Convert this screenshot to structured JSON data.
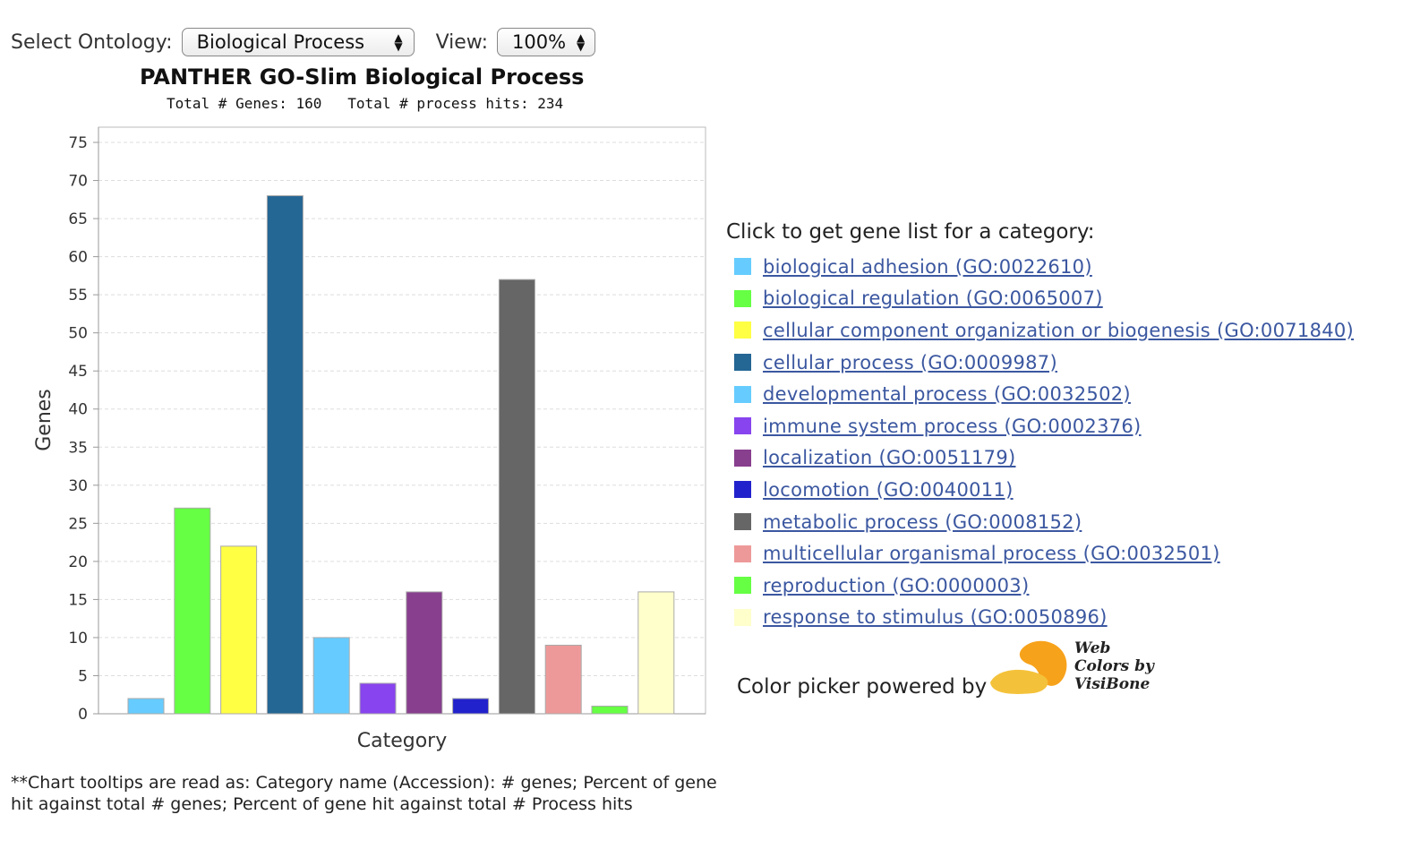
{
  "controls": {
    "ontology_label": "Select Ontology:",
    "ontology_value": "Biological Process",
    "view_label": "View:",
    "view_value": "100%"
  },
  "chart_data": {
    "type": "bar",
    "title": "PANTHER GO-Slim Biological Process",
    "subtitle": "Total # Genes: 160   Total # process hits: 234",
    "xlabel": "Category",
    "ylabel": "Genes",
    "ylim": [
      0,
      77
    ],
    "yticks": [
      0,
      5,
      10,
      15,
      20,
      25,
      30,
      35,
      40,
      45,
      50,
      55,
      60,
      65,
      70,
      75
    ],
    "grid": true,
    "legend_position": "right",
    "categories": [
      "biological adhesion (GO:0022610)",
      "biological regulation (GO:0065007)",
      "cellular component organization or biogenesis (GO:0071840)",
      "cellular process (GO:0009987)",
      "developmental process (GO:0032502)",
      "immune system process (GO:0002376)",
      "localization (GO:0051179)",
      "locomotion (GO:0040011)",
      "metabolic process (GO:0008152)",
      "multicellular organismal process (GO:0032501)",
      "reproduction (GO:0000003)",
      "response to stimulus (GO:0050896)"
    ],
    "values": [
      2,
      27,
      22,
      68,
      10,
      4,
      16,
      2,
      57,
      9,
      1,
      16
    ],
    "colors": [
      "#66ccff",
      "#66ff44",
      "#ffff44",
      "#246694",
      "#66ccff",
      "#8844ee",
      "#883f8e",
      "#2222cc",
      "#666666",
      "#ee9999",
      "#66ff44",
      "#ffffcc"
    ]
  },
  "legend": {
    "heading": "Click to get gene list for a category:"
  },
  "footnote": "**Chart tooltips are read as: Category name (Accession): # genes; Percent of gene hit against total # genes; Percent of gene hit against total # Process hits",
  "powered_by": {
    "text": "Color picker powered by",
    "logo_text": [
      "Web",
      "Colors by",
      "VisiBone"
    ]
  }
}
